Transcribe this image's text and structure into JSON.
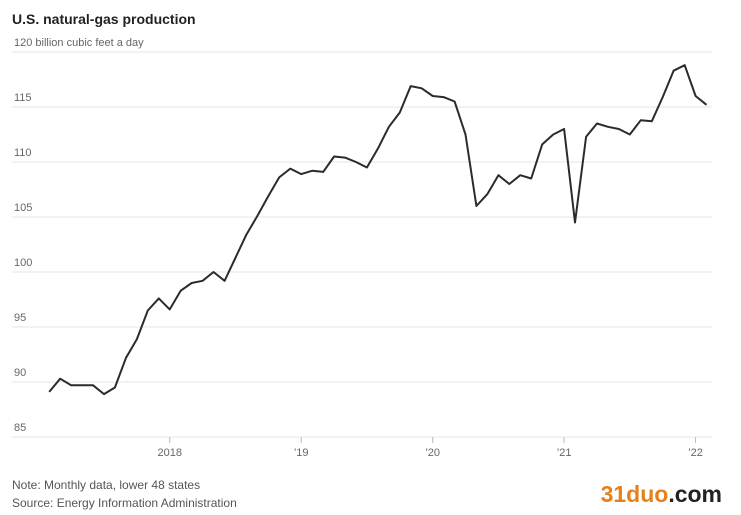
{
  "chart_data": {
    "type": "line",
    "title": "U.S. natural-gas production",
    "note": "Note: Monthly data, lower 48 states",
    "source": "Source: Energy Information Administration",
    "watermark": [
      "31duo",
      ".com"
    ],
    "x": [
      2017.083,
      2017.167,
      2017.25,
      2017.333,
      2017.417,
      2017.5,
      2017.583,
      2017.667,
      2017.75,
      2017.833,
      2017.917,
      2018.0,
      2018.083,
      2018.167,
      2018.25,
      2018.333,
      2018.417,
      2018.5,
      2018.583,
      2018.667,
      2018.75,
      2018.833,
      2018.917,
      2019.0,
      2019.083,
      2019.167,
      2019.25,
      2019.333,
      2019.417,
      2019.5,
      2019.583,
      2019.667,
      2019.75,
      2019.833,
      2019.917,
      2020.0,
      2020.083,
      2020.167,
      2020.25,
      2020.333,
      2020.417,
      2020.5,
      2020.583,
      2020.667,
      2020.75,
      2020.833,
      2020.917,
      2021.0,
      2021.083,
      2021.167,
      2021.25,
      2021.333,
      2021.417,
      2021.5,
      2021.583,
      2021.667,
      2021.75,
      2021.833,
      2021.917,
      2022.0,
      2022.083
    ],
    "series": [
      {
        "name": "Production",
        "color": "#2b2b2b",
        "values": [
          89.1,
          90.3,
          89.7,
          89.7,
          89.7,
          88.9,
          89.5,
          92.2,
          93.9,
          96.5,
          97.6,
          96.6,
          98.3,
          99.0,
          99.2,
          100.0,
          99.2,
          101.3,
          103.4,
          105.1,
          106.9,
          108.6,
          109.4,
          108.9,
          109.2,
          109.1,
          110.5,
          110.4,
          110.0,
          109.5,
          111.2,
          113.2,
          114.5,
          116.9,
          116.7,
          116.0,
          115.9,
          115.5,
          112.5,
          106.0,
          107.1,
          108.8,
          108.0,
          108.8,
          108.5,
          111.6,
          112.5,
          113.0,
          104.5,
          112.3,
          113.5,
          113.2,
          113.0,
          112.5,
          113.8,
          113.7,
          115.9,
          118.3,
          118.8,
          116.0,
          115.2
        ]
      }
    ],
    "xlim": [
      2016.8,
      2022.125
    ],
    "xticks": [
      2018,
      {
        "value": 2019,
        "label": "’19"
      },
      {
        "value": 2020,
        "label": "’20"
      },
      {
        "value": 2021,
        "label": "’21"
      },
      {
        "value": 2022,
        "label": "’22"
      }
    ],
    "ylim": [
      85,
      120
    ],
    "yticks": [
      85,
      90,
      95,
      100,
      105,
      110,
      115,
      {
        "value": 120,
        "label": "120 billion cubic feet a day"
      }
    ],
    "grid": true
  }
}
